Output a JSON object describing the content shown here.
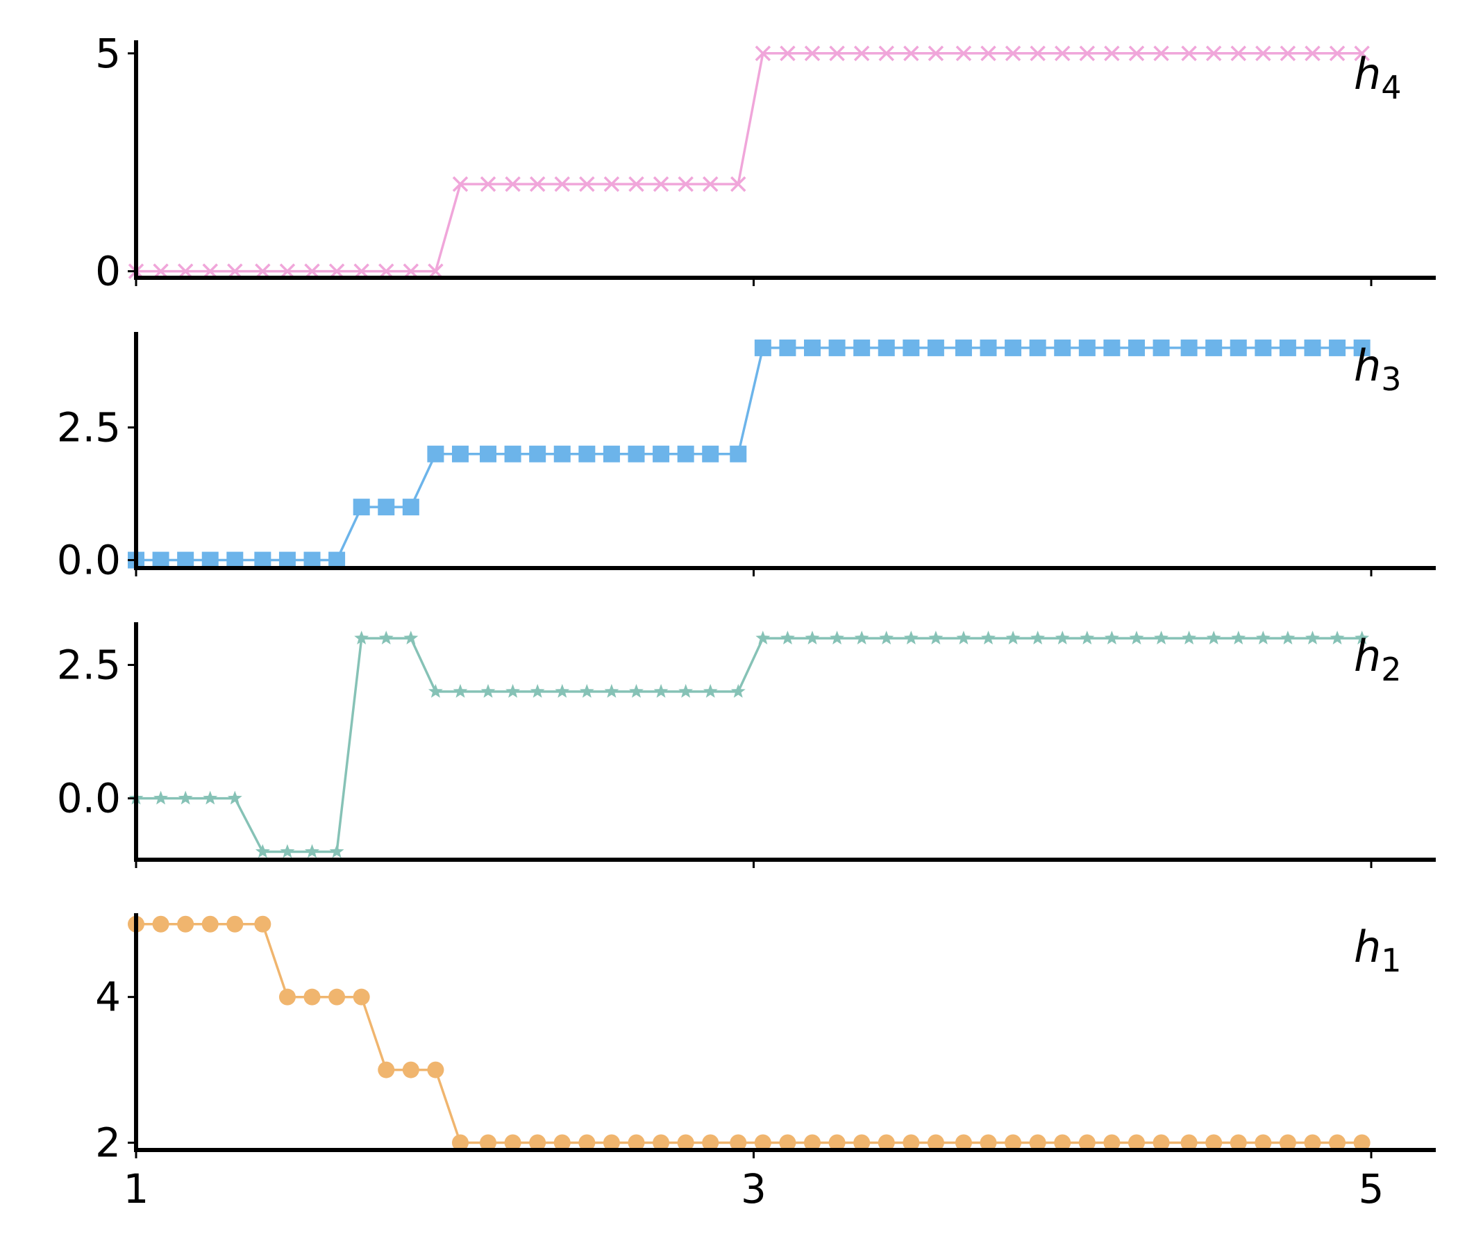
{
  "chart_data": [
    {
      "type": "line",
      "label_text": "h",
      "label_sub": "4",
      "color": "#F0A6DA",
      "marker": "x",
      "x_range": [
        1,
        5
      ],
      "x": [
        1,
        1.08,
        1.16,
        1.24,
        1.32,
        1.41,
        1.49,
        1.57,
        1.65,
        1.73,
        1.81,
        1.89,
        1.97,
        2.05,
        2.14,
        2.22,
        2.3,
        2.38,
        2.46,
        2.54,
        2.62,
        2.7,
        2.78,
        2.86,
        2.95,
        3.03,
        3.11,
        3.19,
        3.27,
        3.35,
        3.43,
        3.51,
        3.59,
        3.68,
        3.76,
        3.84,
        3.92,
        4,
        4.08,
        4.16,
        4.24,
        4.32,
        4.41,
        4.49,
        4.57,
        4.65,
        4.73,
        4.81,
        4.89,
        4.97
      ],
      "y": [
        0,
        0,
        0,
        0,
        0,
        0,
        0,
        0,
        0,
        0,
        0,
        0,
        0,
        2,
        2,
        2,
        2,
        2,
        2,
        2,
        2,
        2,
        2,
        2,
        2,
        5,
        5,
        5,
        5,
        5,
        5,
        5,
        5,
        5,
        5,
        5,
        5,
        5,
        5,
        5,
        5,
        5,
        5,
        5,
        5,
        5,
        5,
        5,
        5,
        5
      ],
      "ylim": [
        -0.15,
        5.3
      ],
      "yticks": [
        0,
        5
      ],
      "ytick_labels": [
        "0",
        "5"
      ],
      "xticks": [
        1,
        3,
        5
      ],
      "xtick_labels": [
        "",
        "",
        ""
      ]
    },
    {
      "type": "line",
      "label_text": "h",
      "label_sub": "3",
      "color": "#6CB4EA",
      "marker": "square",
      "x_range": [
        1,
        5
      ],
      "x": [
        1,
        1.08,
        1.16,
        1.24,
        1.32,
        1.41,
        1.49,
        1.57,
        1.65,
        1.73,
        1.81,
        1.89,
        1.97,
        2.05,
        2.14,
        2.22,
        2.3,
        2.38,
        2.46,
        2.54,
        2.62,
        2.7,
        2.78,
        2.86,
        2.95,
        3.03,
        3.11,
        3.19,
        3.27,
        3.35,
        3.43,
        3.51,
        3.59,
        3.68,
        3.76,
        3.84,
        3.92,
        4,
        4.08,
        4.16,
        4.24,
        4.32,
        4.41,
        4.49,
        4.57,
        4.65,
        4.73,
        4.81,
        4.89,
        4.97
      ],
      "y": [
        0,
        0,
        0,
        0,
        0,
        0,
        0,
        0,
        0,
        1,
        1,
        1,
        2,
        2,
        2,
        2,
        2,
        2,
        2,
        2,
        2,
        2,
        2,
        2,
        2,
        4,
        4,
        4,
        4,
        4,
        4,
        4,
        4,
        4,
        4,
        4,
        4,
        4,
        4,
        4,
        4,
        4,
        4,
        4,
        4,
        4,
        4,
        4,
        4,
        4
      ],
      "ylim": [
        -0.15,
        4.3
      ],
      "yticks": [
        0,
        2.5
      ],
      "ytick_labels": [
        "0.0",
        "2.5"
      ],
      "xticks": [
        1,
        3,
        5
      ],
      "xtick_labels": [
        "",
        "",
        ""
      ]
    },
    {
      "type": "line",
      "label_text": "h",
      "label_sub": "2",
      "color": "#86C2B6",
      "marker": "star",
      "x_range": [
        1,
        5
      ],
      "x": [
        1,
        1.08,
        1.16,
        1.24,
        1.32,
        1.41,
        1.49,
        1.57,
        1.65,
        1.73,
        1.81,
        1.89,
        1.97,
        2.05,
        2.14,
        2.22,
        2.3,
        2.38,
        2.46,
        2.54,
        2.62,
        2.7,
        2.78,
        2.86,
        2.95,
        3.03,
        3.11,
        3.19,
        3.27,
        3.35,
        3.43,
        3.51,
        3.59,
        3.68,
        3.76,
        3.84,
        3.92,
        4,
        4.08,
        4.16,
        4.24,
        4.32,
        4.41,
        4.49,
        4.57,
        4.65,
        4.73,
        4.81,
        4.89,
        4.97
      ],
      "y": [
        0,
        0,
        0,
        0,
        0,
        -1,
        -1,
        -1,
        -1,
        3,
        3,
        3,
        2,
        2,
        2,
        2,
        2,
        2,
        2,
        2,
        2,
        2,
        2,
        2,
        2,
        3,
        3,
        3,
        3,
        3,
        3,
        3,
        3,
        3,
        3,
        3,
        3,
        3,
        3,
        3,
        3,
        3,
        3,
        3,
        3,
        3,
        3,
        3,
        3,
        3
      ],
      "ylim": [
        -1.15,
        3.3
      ],
      "yticks": [
        0,
        2.5
      ],
      "ytick_labels": [
        "0.0",
        "2.5"
      ],
      "xticks": [
        1,
        3,
        5
      ],
      "xtick_labels": [
        "",
        "",
        ""
      ]
    },
    {
      "type": "line",
      "label_text": "h",
      "label_sub": "1",
      "color": "#F0B56E",
      "marker": "circle",
      "x_range": [
        1,
        5
      ],
      "x": [
        1,
        1.08,
        1.16,
        1.24,
        1.32,
        1.41,
        1.49,
        1.57,
        1.65,
        1.73,
        1.81,
        1.89,
        1.97,
        2.05,
        2.14,
        2.22,
        2.3,
        2.38,
        2.46,
        2.54,
        2.62,
        2.7,
        2.78,
        2.86,
        2.95,
        3.03,
        3.11,
        3.19,
        3.27,
        3.35,
        3.43,
        3.51,
        3.59,
        3.68,
        3.76,
        3.84,
        3.92,
        4,
        4.08,
        4.16,
        4.24,
        4.32,
        4.41,
        4.49,
        4.57,
        4.65,
        4.73,
        4.81,
        4.89,
        4.97
      ],
      "y": [
        5,
        5,
        5,
        5,
        5,
        5,
        4,
        4,
        4,
        4,
        3,
        3,
        3,
        2,
        2,
        2,
        2,
        2,
        2,
        2,
        2,
        2,
        2,
        2,
        2,
        2,
        2,
        2,
        2,
        2,
        2,
        2,
        2,
        2,
        2,
        2,
        2,
        2,
        2,
        2,
        2,
        2,
        2,
        2,
        2,
        2,
        2,
        2,
        2,
        2
      ],
      "ylim": [
        1.9,
        5.15
      ],
      "yticks": [
        2,
        4
      ],
      "ytick_labels": [
        "2",
        "4"
      ],
      "xticks": [
        1,
        3,
        5
      ],
      "xtick_labels": [
        "1",
        "3",
        "5"
      ]
    }
  ]
}
